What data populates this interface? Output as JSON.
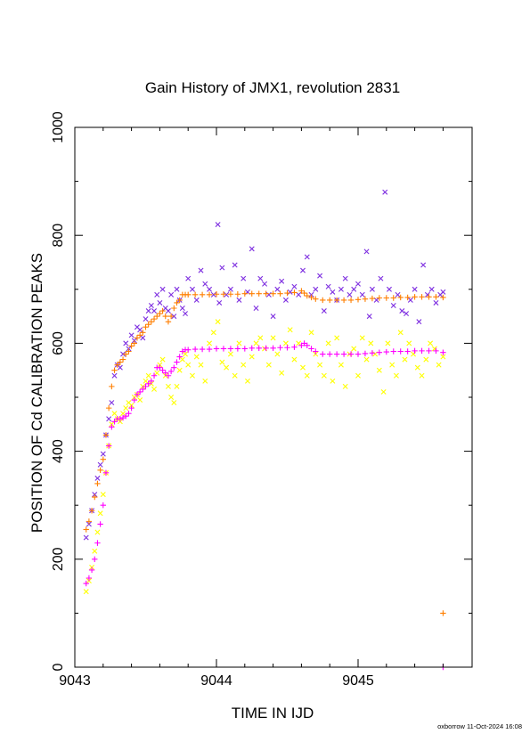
{
  "chart_data": {
    "type": "scatter",
    "title": "Gain History of JMX1, revolution 2831",
    "xlabel": "TIME IN IJD",
    "ylabel": "POSITION OF Cd CALIBRATION PEAKS",
    "xlim": [
      9043.0,
      9045.8
    ],
    "ylim": [
      0,
      1000
    ],
    "xticks": [
      "9043",
      "9044",
      "9045"
    ],
    "xtick_values": [
      9043,
      9044,
      9045
    ],
    "yticks": [
      "0",
      "200",
      "400",
      "600",
      "800",
      "1000"
    ],
    "ytick_values": [
      0,
      200,
      400,
      600,
      800,
      1000
    ],
    "grid": false,
    "footer": "oxborrow 11-Oct-2024 16:08",
    "series": [
      {
        "marker": "cross",
        "color": "#7e2fe0",
        "x": [
          9043.08,
          9043.1,
          9043.12,
          9043.14,
          9043.16,
          9043.18,
          9043.2,
          9043.22,
          9043.24,
          9043.26,
          9043.28,
          9043.3,
          9043.32,
          9043.34,
          9043.36,
          9043.38,
          9043.4,
          9043.42,
          9043.44,
          9043.46,
          9043.48,
          9043.5,
          9043.52,
          9043.54,
          9043.56,
          9043.58,
          9043.6,
          9043.62,
          9043.64,
          9043.66,
          9043.68,
          9043.7,
          9043.72,
          9043.74,
          9043.76,
          9043.78,
          9043.8,
          9043.83,
          9043.86,
          9043.89,
          9043.92,
          9043.95,
          9043.98,
          9044.01,
          9044.02,
          9044.04,
          9044.07,
          9044.1,
          9044.13,
          9044.16,
          9044.19,
          9044.22,
          9044.25,
          9044.28,
          9044.31,
          9044.34,
          9044.37,
          9044.4,
          9044.43,
          9044.46,
          9044.49,
          9044.52,
          9044.55,
          9044.58,
          9044.61,
          9044.64,
          9044.67,
          9044.7,
          9044.73,
          9044.76,
          9044.79,
          9044.82,
          9044.85,
          9044.88,
          9044.91,
          9044.94,
          9044.97,
          9045.0,
          9045.03,
          9045.06,
          9045.08,
          9045.1,
          9045.13,
          9045.16,
          9045.19,
          9045.22,
          9045.25,
          9045.28,
          9045.31,
          9045.34,
          9045.37,
          9045.4,
          9045.43,
          9045.46,
          9045.49,
          9045.52,
          9045.55,
          9045.58,
          9045.6
        ],
        "y": [
          240,
          265,
          290,
          320,
          350,
          375,
          395,
          430,
          460,
          490,
          540,
          560,
          555,
          580,
          600,
          590,
          615,
          605,
          630,
          625,
          610,
          645,
          660,
          670,
          660,
          690,
          675,
          700,
          665,
          660,
          690,
          650,
          700,
          680,
          665,
          655,
          720,
          700,
          680,
          735,
          710,
          700,
          690,
          820,
          675,
          740,
          690,
          700,
          745,
          680,
          720,
          695,
          775,
          665,
          720,
          710,
          690,
          650,
          700,
          715,
          680,
          695,
          705,
          690,
          735,
          760,
          690,
          700,
          725,
          660,
          705,
          695,
          680,
          700,
          720,
          690,
          700,
          710,
          690,
          770,
          650,
          700,
          680,
          720,
          880,
          700,
          670,
          690,
          660,
          655,
          680,
          700,
          640,
          745,
          690,
          700,
          675,
          690,
          695
        ]
      },
      {
        "marker": "cross",
        "color": "#ffff00",
        "x": [
          9043.08,
          9043.1,
          9043.12,
          9043.14,
          9043.16,
          9043.18,
          9043.2,
          9043.22,
          9043.24,
          9043.26,
          9043.28,
          9043.3,
          9043.32,
          9043.34,
          9043.36,
          9043.38,
          9043.4,
          9043.42,
          9043.44,
          9043.46,
          9043.48,
          9043.5,
          9043.52,
          9043.54,
          9043.56,
          9043.58,
          9043.6,
          9043.62,
          9043.64,
          9043.66,
          9043.68,
          9043.7,
          9043.72,
          9043.74,
          9043.76,
          9043.78,
          9043.8,
          9043.83,
          9043.86,
          9043.89,
          9043.92,
          9043.95,
          9043.98,
          9044.01,
          9044.04,
          9044.07,
          9044.1,
          9044.13,
          9044.16,
          9044.19,
          9044.22,
          9044.25,
          9044.28,
          9044.31,
          9044.34,
          9044.37,
          9044.4,
          9044.43,
          9044.46,
          9044.49,
          9044.52,
          9044.55,
          9044.58,
          9044.61,
          9044.64,
          9044.67,
          9044.7,
          9044.73,
          9044.76,
          9044.79,
          9044.82,
          9044.85,
          9044.88,
          9044.91,
          9044.94,
          9044.97,
          9045.0,
          9045.03,
          9045.06,
          9045.09,
          9045.12,
          9045.15,
          9045.18,
          9045.21,
          9045.24,
          9045.27,
          9045.3,
          9045.33,
          9045.36,
          9045.39,
          9045.42,
          9045.45,
          9045.48,
          9045.51,
          9045.54,
          9045.57,
          9045.6
        ],
        "y": [
          140,
          160,
          185,
          215,
          250,
          285,
          320,
          360,
          410,
          450,
          470,
          460,
          455,
          470,
          480,
          490,
          485,
          500,
          505,
          495,
          520,
          530,
          540,
          525,
          515,
          545,
          560,
          570,
          540,
          520,
          500,
          490,
          520,
          550,
          570,
          580,
          560,
          540,
          575,
          560,
          530,
          600,
          620,
          640,
          565,
          555,
          580,
          540,
          600,
          560,
          530,
          575,
          600,
          610,
          590,
          560,
          610,
          580,
          545,
          600,
          625,
          570,
          600,
          555,
          540,
          620,
          580,
          560,
          540,
          600,
          530,
          610,
          560,
          520,
          580,
          590,
          540,
          610,
          570,
          600,
          580,
          550,
          510,
          600,
          560,
          540,
          620,
          570,
          600,
          580,
          555,
          540,
          570,
          600,
          590,
          560,
          575
        ]
      },
      {
        "marker": "plus",
        "color": "#ff7f00",
        "x": [
          9043.08,
          9043.1,
          9043.12,
          9043.14,
          9043.16,
          9043.18,
          9043.2,
          9043.22,
          9043.24,
          9043.26,
          9043.28,
          9043.3,
          9043.32,
          9043.34,
          9043.36,
          9043.38,
          9043.4,
          9043.42,
          9043.44,
          9043.46,
          9043.48,
          9043.5,
          9043.52,
          9043.54,
          9043.56,
          9043.58,
          9043.6,
          9043.62,
          9043.64,
          9043.66,
          9043.68,
          9043.7,
          9043.72,
          9043.74,
          9043.76,
          9043.78,
          9043.8,
          9043.85,
          9043.9,
          9043.95,
          9044.0,
          9044.05,
          9044.1,
          9044.15,
          9044.2,
          9044.25,
          9044.3,
          9044.35,
          9044.4,
          9044.45,
          9044.5,
          9044.55,
          9044.6,
          9044.62,
          9044.64,
          9044.67,
          9044.7,
          9044.75,
          9044.8,
          9044.85,
          9044.9,
          9044.95,
          9045.0,
          9045.05,
          9045.1,
          9045.15,
          9045.2,
          9045.25,
          9045.3,
          9045.35,
          9045.4,
          9045.45,
          9045.5,
          9045.55,
          9045.6,
          9045.6
        ],
        "y": [
          255,
          270,
          290,
          315,
          340,
          365,
          385,
          430,
          480,
          520,
          550,
          560,
          565,
          570,
          580,
          585,
          595,
          600,
          610,
          615,
          620,
          630,
          635,
          640,
          645,
          650,
          655,
          660,
          650,
          640,
          650,
          665,
          675,
          680,
          690,
          690,
          690,
          690,
          690,
          690,
          691,
          691,
          691,
          691,
          692,
          692,
          692,
          692,
          692,
          692,
          693,
          694,
          697,
          693,
          688,
          685,
          682,
          680,
          680,
          680,
          680,
          680,
          681,
          682,
          683,
          684,
          684,
          684,
          685,
          685,
          686,
          686,
          686,
          686,
          685,
          100
        ]
      },
      {
        "marker": "plus",
        "color": "#ff00ff",
        "x": [
          9043.08,
          9043.1,
          9043.12,
          9043.14,
          9043.16,
          9043.18,
          9043.2,
          9043.22,
          9043.24,
          9043.26,
          9043.28,
          9043.3,
          9043.32,
          9043.34,
          9043.36,
          9043.38,
          9043.4,
          9043.42,
          9043.44,
          9043.46,
          9043.48,
          9043.5,
          9043.52,
          9043.54,
          9043.56,
          9043.58,
          9043.6,
          9043.62,
          9043.64,
          9043.66,
          9043.68,
          9043.7,
          9043.72,
          9043.74,
          9043.76,
          9043.78,
          9043.8,
          9043.85,
          9043.9,
          9043.95,
          9044.0,
          9044.05,
          9044.1,
          9044.15,
          9044.2,
          9044.25,
          9044.3,
          9044.35,
          9044.4,
          9044.45,
          9044.5,
          9044.55,
          9044.6,
          9044.62,
          9044.64,
          9044.67,
          9044.7,
          9044.75,
          9044.8,
          9044.85,
          9044.9,
          9044.95,
          9045.0,
          9045.05,
          9045.1,
          9045.15,
          9045.2,
          9045.25,
          9045.3,
          9045.35,
          9045.4,
          9045.45,
          9045.5,
          9045.55,
          9045.6,
          9045.6
        ],
        "y": [
          155,
          165,
          180,
          200,
          230,
          265,
          300,
          360,
          410,
          445,
          455,
          460,
          460,
          462,
          465,
          470,
          480,
          495,
          505,
          510,
          515,
          520,
          525,
          530,
          540,
          555,
          555,
          550,
          545,
          540,
          548,
          555,
          565,
          575,
          585,
          588,
          588,
          589,
          589,
          589,
          590,
          590,
          590,
          590,
          590,
          591,
          591,
          591,
          591,
          592,
          592,
          593,
          596,
          600,
          596,
          590,
          585,
          580,
          580,
          580,
          580,
          580,
          580,
          581,
          582,
          583,
          584,
          585,
          585,
          585,
          586,
          586,
          586,
          586,
          583,
          0
        ]
      }
    ]
  }
}
